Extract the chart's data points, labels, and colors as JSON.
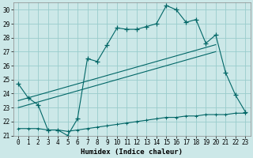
{
  "xlabel": "Humidex (Indice chaleur)",
  "bg_color": "#cce8e8",
  "line_color": "#006666",
  "grid_color": "#99cccc",
  "xlim": [
    -0.5,
    23.5
  ],
  "ylim": [
    21,
    30.5
  ],
  "yticks": [
    21,
    22,
    23,
    24,
    25,
    26,
    27,
    28,
    29,
    30
  ],
  "xticks": [
    0,
    1,
    2,
    3,
    4,
    5,
    6,
    7,
    8,
    9,
    10,
    11,
    12,
    13,
    14,
    15,
    16,
    17,
    18,
    19,
    20,
    21,
    22,
    23
  ],
  "series1_x": [
    0,
    1,
    2,
    3,
    4,
    5,
    6,
    7,
    8,
    9,
    10,
    11,
    12,
    13,
    14,
    15,
    16,
    17,
    18,
    19,
    20,
    21,
    22,
    23
  ],
  "series1_y": [
    24.7,
    23.7,
    23.2,
    21.4,
    21.4,
    21.0,
    22.2,
    26.5,
    26.3,
    27.5,
    28.7,
    28.6,
    28.6,
    28.8,
    29.0,
    30.3,
    30.0,
    29.1,
    29.3,
    27.6,
    28.2,
    25.5,
    23.9,
    22.7
  ],
  "series2_x": [
    0,
    20
  ],
  "series2_y": [
    23.5,
    27.5
  ],
  "series3_x": [
    0,
    20
  ],
  "series3_y": [
    23.0,
    27.0
  ],
  "series4_x": [
    0,
    1,
    2,
    3,
    4,
    5,
    6,
    7,
    8,
    9,
    10,
    11,
    12,
    13,
    14,
    15,
    16,
    17,
    18,
    19,
    20,
    21,
    22,
    23
  ],
  "series4_y": [
    21.5,
    21.5,
    21.5,
    21.4,
    21.4,
    21.3,
    21.4,
    21.5,
    21.6,
    21.7,
    21.8,
    21.9,
    22.0,
    22.1,
    22.2,
    22.3,
    22.3,
    22.4,
    22.4,
    22.5,
    22.5,
    22.5,
    22.6,
    22.6
  ]
}
